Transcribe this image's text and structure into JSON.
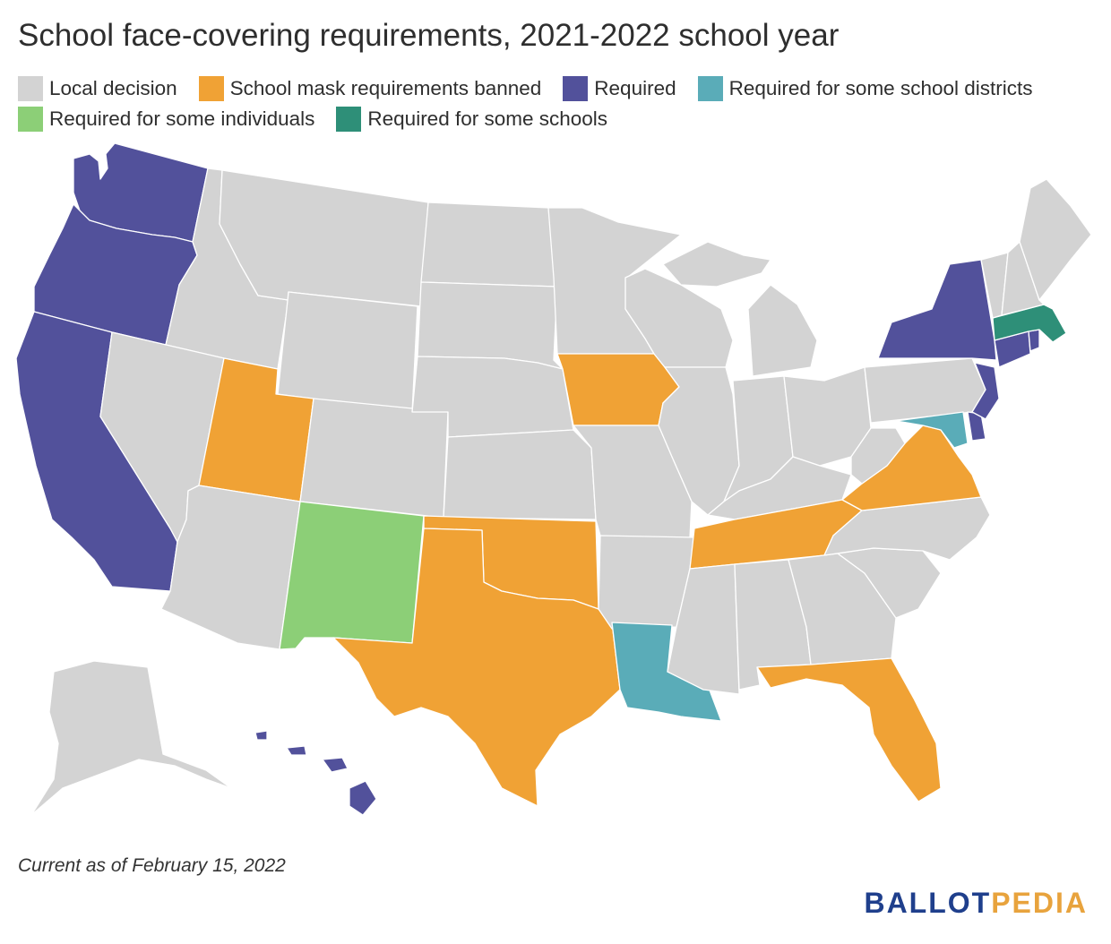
{
  "title": "School face-covering requirements, 2021-2022 school year",
  "legend": [
    {
      "label": "Local decision",
      "color": "#d3d3d3"
    },
    {
      "label": "School mask requirements banned",
      "color": "#f0a235"
    },
    {
      "label": "Required",
      "color": "#52519b"
    },
    {
      "label": "Required for some school districts",
      "color": "#5aacb8"
    },
    {
      "label": "Required for some individuals",
      "color": "#8ccf77"
    },
    {
      "label": "Required for some schools",
      "color": "#2e8f78"
    }
  ],
  "footnote": "Current as of February 15, 2022",
  "logo": {
    "part1": "BALLOT",
    "part2": "PEDIA"
  },
  "colors": {
    "local": "#d3d3d3",
    "banned": "#f0a235",
    "required": "#52519b",
    "districts": "#5aacb8",
    "individuals": "#8ccf77",
    "schools": "#2e8f78"
  }
}
